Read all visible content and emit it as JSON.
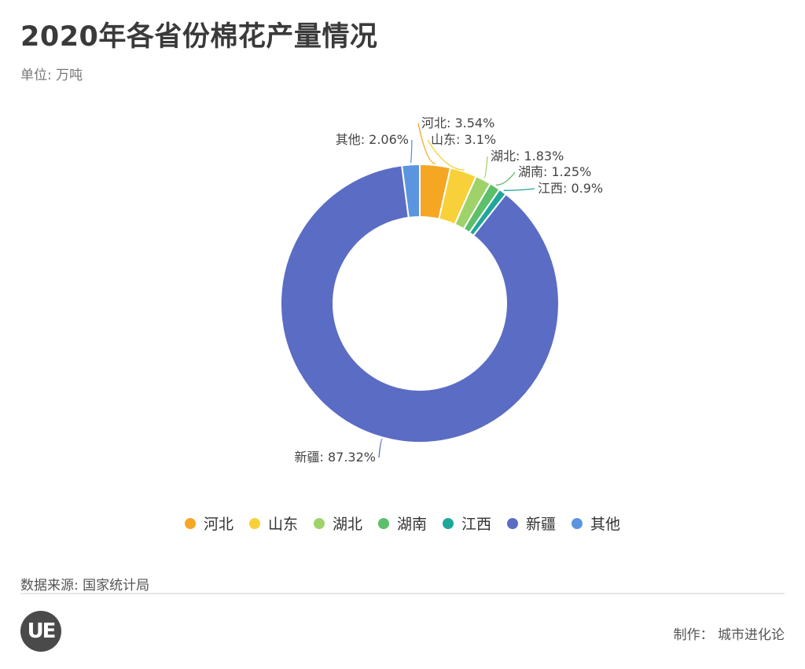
{
  "header": {
    "title": "2020年各省份棉花产量情况",
    "unit": "单位: 万吨"
  },
  "chart_data": {
    "type": "pie",
    "donut": true,
    "slices": [
      {
        "name": "河北",
        "value": 3.54,
        "label": "河北: 3.54%",
        "color": "#f5a623"
      },
      {
        "name": "山东",
        "value": 3.1,
        "label": "山东: 3.1%",
        "color": "#f8d13a"
      },
      {
        "name": "湖北",
        "value": 1.83,
        "label": "湖北: 1.83%",
        "color": "#9fd36a"
      },
      {
        "name": "湖南",
        "value": 1.25,
        "label": "湖南: 1.25%",
        "color": "#5cbf6a"
      },
      {
        "name": "江西",
        "value": 0.9,
        "label": "江西: 0.9%",
        "color": "#1fa69a"
      },
      {
        "name": "新疆",
        "value": 87.32,
        "label": "新疆: 87.32%",
        "color": "#5b6cc4"
      },
      {
        "name": "其他",
        "value": 2.06,
        "label": "其他: 2.06%",
        "color": "#5b95e0"
      }
    ],
    "legend_position": "bottom"
  },
  "footer": {
    "source": "数据来源: 国家统计局",
    "logo_text": "UE",
    "maker": "制作：  城市进化论"
  }
}
